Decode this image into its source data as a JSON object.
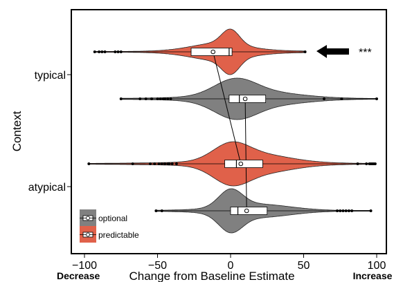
{
  "chart_data": {
    "type": "violin",
    "xlabel": "Change from Baseline Estimate",
    "ylabel": "Context",
    "xlim": [
      -100,
      100
    ],
    "x_ticks": [
      "−100",
      "−50",
      "0",
      "50",
      "100"
    ],
    "x_tick_values": [
      -100,
      -50,
      0,
      50,
      100
    ],
    "x_end_labels": {
      "left": "Decrease",
      "right": "Increase"
    },
    "y_categories": [
      "typical",
      "atypical"
    ],
    "legend": [
      {
        "name": "optional",
        "color": "#808080"
      },
      {
        "name": "predictable",
        "color": "#e0614a"
      }
    ],
    "significance": "***",
    "significance_marker": "left-arrow",
    "series": [
      {
        "context": "typical",
        "condition": "predictable",
        "color": "#e0614a",
        "whisker": [
          -92,
          50
        ],
        "q1": -27,
        "median": -1,
        "q3": 1,
        "mean": -12,
        "outliers": [
          -93,
          -90,
          -88,
          -86,
          -79,
          -77,
          -75,
          51
        ]
      },
      {
        "context": "typical",
        "condition": "optional",
        "color": "#808080",
        "whisker": [
          -75,
          100
        ],
        "q1": -1,
        "median": 6,
        "q3": 24,
        "mean": 10,
        "outliers": [
          -75,
          -62,
          -58,
          -54,
          -50,
          -48,
          -46,
          -45,
          -43,
          -41,
          64,
          76,
          100
        ]
      },
      {
        "context": "atypical",
        "condition": "predictable",
        "color": "#e0614a",
        "whisker": [
          -97,
          99
        ],
        "q1": -4,
        "median": 4,
        "q3": 22,
        "mean": 7,
        "outliers": [
          -97,
          -67,
          -55,
          -52,
          -49,
          -47,
          -45,
          -43,
          -42,
          -40,
          -37,
          87,
          93,
          95,
          96,
          97,
          98,
          99
        ]
      },
      {
        "context": "atypical",
        "condition": "optional",
        "color": "#808080",
        "whisker": [
          -51,
          96
        ],
        "q1": 0,
        "median": 5,
        "q3": 25,
        "mean": 11,
        "outliers": [
          -51,
          -47,
          73,
          75,
          77,
          79,
          81,
          83,
          96
        ]
      }
    ]
  }
}
